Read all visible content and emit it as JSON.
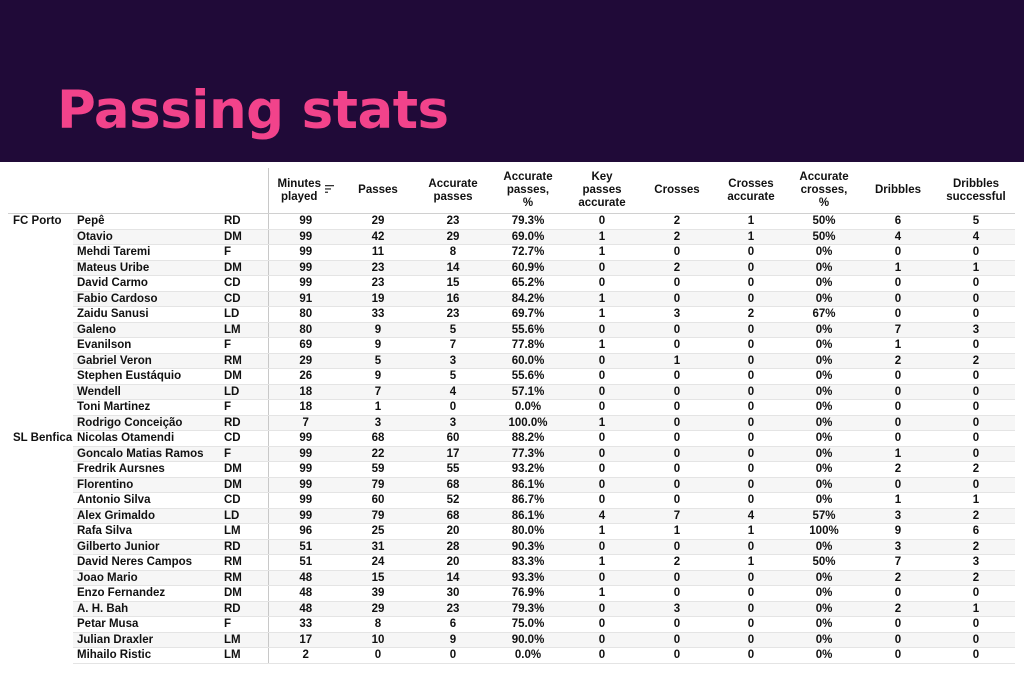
{
  "title": "Passing stats",
  "table": {
    "sort_column_icon": "sort-icon",
    "columns": [
      "Minutes played",
      "Passes",
      "Accurate passes",
      "Accurate passes, %",
      "Key passes accurate",
      "Crosses",
      "Crosses accurate",
      "Accurate crosses, %",
      "Dribbles",
      "Dribbles successful"
    ],
    "teams": [
      {
        "name": "FC Porto",
        "players": [
          {
            "name": "Pepê",
            "pos": "RD",
            "stats": [
              "99",
              "29",
              "23",
              "79.3%",
              "0",
              "2",
              "1",
              "50%",
              "6",
              "5"
            ]
          },
          {
            "name": "Otavio",
            "pos": "DM",
            "stats": [
              "99",
              "42",
              "29",
              "69.0%",
              "1",
              "2",
              "1",
              "50%",
              "4",
              "4"
            ]
          },
          {
            "name": "Mehdi Taremi",
            "pos": "F",
            "stats": [
              "99",
              "11",
              "8",
              "72.7%",
              "1",
              "0",
              "0",
              "0%",
              "0",
              "0"
            ]
          },
          {
            "name": "Mateus Uribe",
            "pos": "DM",
            "stats": [
              "99",
              "23",
              "14",
              "60.9%",
              "0",
              "2",
              "0",
              "0%",
              "1",
              "1"
            ]
          },
          {
            "name": "David Carmo",
            "pos": "CD",
            "stats": [
              "99",
              "23",
              "15",
              "65.2%",
              "0",
              "0",
              "0",
              "0%",
              "0",
              "0"
            ]
          },
          {
            "name": "Fabio Cardoso",
            "pos": "CD",
            "stats": [
              "91",
              "19",
              "16",
              "84.2%",
              "1",
              "0",
              "0",
              "0%",
              "0",
              "0"
            ]
          },
          {
            "name": "Zaidu Sanusi",
            "pos": "LD",
            "stats": [
              "80",
              "33",
              "23",
              "69.7%",
              "1",
              "3",
              "2",
              "67%",
              "0",
              "0"
            ]
          },
          {
            "name": "Galeno",
            "pos": "LM",
            "stats": [
              "80",
              "9",
              "5",
              "55.6%",
              "0",
              "0",
              "0",
              "0%",
              "7",
              "3"
            ]
          },
          {
            "name": "Evanilson",
            "pos": "F",
            "stats": [
              "69",
              "9",
              "7",
              "77.8%",
              "1",
              "0",
              "0",
              "0%",
              "1",
              "0"
            ]
          },
          {
            "name": "Gabriel Veron",
            "pos": "RM",
            "stats": [
              "29",
              "5",
              "3",
              "60.0%",
              "0",
              "1",
              "0",
              "0%",
              "2",
              "2"
            ]
          },
          {
            "name": "Stephen Eustáquio",
            "pos": "DM",
            "stats": [
              "26",
              "9",
              "5",
              "55.6%",
              "0",
              "0",
              "0",
              "0%",
              "0",
              "0"
            ]
          },
          {
            "name": "Wendell",
            "pos": "LD",
            "stats": [
              "18",
              "7",
              "4",
              "57.1%",
              "0",
              "0",
              "0",
              "0%",
              "0",
              "0"
            ]
          },
          {
            "name": "Toni Martinez",
            "pos": "F",
            "stats": [
              "18",
              "1",
              "0",
              "0.0%",
              "0",
              "0",
              "0",
              "0%",
              "0",
              "0"
            ]
          },
          {
            "name": "Rodrigo Conceição",
            "pos": "RD",
            "stats": [
              "7",
              "3",
              "3",
              "100.0%",
              "1",
              "0",
              "0",
              "0%",
              "0",
              "0"
            ]
          }
        ]
      },
      {
        "name": "SL Benfica",
        "players": [
          {
            "name": "Nicolas Otamendi",
            "pos": "CD",
            "stats": [
              "99",
              "68",
              "60",
              "88.2%",
              "0",
              "0",
              "0",
              "0%",
              "0",
              "0"
            ]
          },
          {
            "name": "Goncalo Matias Ramos",
            "pos": "F",
            "stats": [
              "99",
              "22",
              "17",
              "77.3%",
              "0",
              "0",
              "0",
              "0%",
              "1",
              "0"
            ]
          },
          {
            "name": "Fredrik Aursnes",
            "pos": "DM",
            "stats": [
              "99",
              "59",
              "55",
              "93.2%",
              "0",
              "0",
              "0",
              "0%",
              "2",
              "2"
            ]
          },
          {
            "name": "Florentino",
            "pos": "DM",
            "stats": [
              "99",
              "79",
              "68",
              "86.1%",
              "0",
              "0",
              "0",
              "0%",
              "0",
              "0"
            ]
          },
          {
            "name": "Antonio Silva",
            "pos": "CD",
            "stats": [
              "99",
              "60",
              "52",
              "86.7%",
              "0",
              "0",
              "0",
              "0%",
              "1",
              "1"
            ]
          },
          {
            "name": "Alex Grimaldo",
            "pos": "LD",
            "stats": [
              "99",
              "79",
              "68",
              "86.1%",
              "4",
              "7",
              "4",
              "57%",
              "3",
              "2"
            ]
          },
          {
            "name": "Rafa Silva",
            "pos": "LM",
            "stats": [
              "96",
              "25",
              "20",
              "80.0%",
              "1",
              "1",
              "1",
              "100%",
              "9",
              "6"
            ]
          },
          {
            "name": "Gilberto Junior",
            "pos": "RD",
            "stats": [
              "51",
              "31",
              "28",
              "90.3%",
              "0",
              "0",
              "0",
              "0%",
              "3",
              "2"
            ]
          },
          {
            "name": "David Neres Campos",
            "pos": "RM",
            "stats": [
              "51",
              "24",
              "20",
              "83.3%",
              "1",
              "2",
              "1",
              "50%",
              "7",
              "3"
            ]
          },
          {
            "name": "Joao Mario",
            "pos": "RM",
            "stats": [
              "48",
              "15",
              "14",
              "93.3%",
              "0",
              "0",
              "0",
              "0%",
              "2",
              "2"
            ]
          },
          {
            "name": "Enzo Fernandez",
            "pos": "DM",
            "stats": [
              "48",
              "39",
              "30",
              "76.9%",
              "1",
              "0",
              "0",
              "0%",
              "0",
              "0"
            ]
          },
          {
            "name": "A. H. Bah",
            "pos": "RD",
            "stats": [
              "48",
              "29",
              "23",
              "79.3%",
              "0",
              "3",
              "0",
              "0%",
              "2",
              "1"
            ]
          },
          {
            "name": "Petar Musa",
            "pos": "F",
            "stats": [
              "33",
              "8",
              "6",
              "75.0%",
              "0",
              "0",
              "0",
              "0%",
              "0",
              "0"
            ]
          },
          {
            "name": "Julian Draxler",
            "pos": "LM",
            "stats": [
              "17",
              "10",
              "9",
              "90.0%",
              "0",
              "0",
              "0",
              "0%",
              "0",
              "0"
            ]
          },
          {
            "name": "Mihailo Ristic",
            "pos": "LM",
            "stats": [
              "2",
              "0",
              "0",
              "0.0%",
              "0",
              "0",
              "0",
              "0%",
              "0",
              "0"
            ]
          }
        ]
      }
    ]
  }
}
